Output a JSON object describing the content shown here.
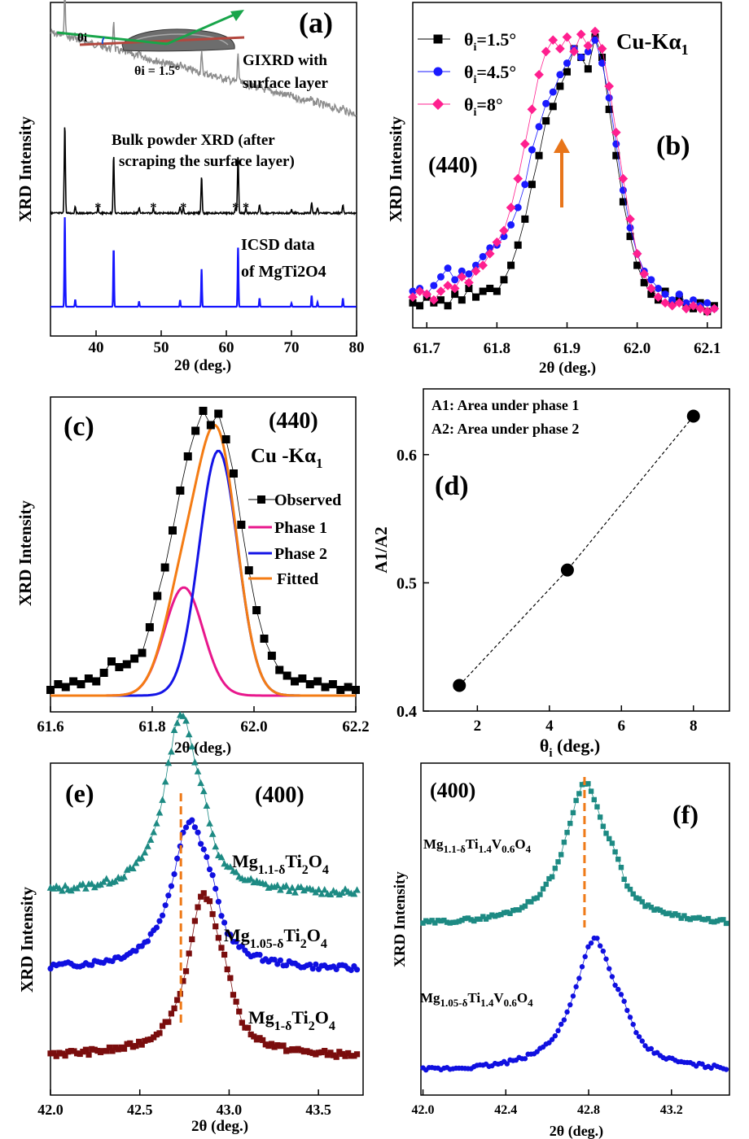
{
  "chart_data": [
    {
      "panel": "(a)",
      "type": "line",
      "xlabel": "2θ (deg.)",
      "ylabel": "XRD Intensity",
      "xlim": [
        33,
        80
      ],
      "xticks": [
        40,
        50,
        60,
        70,
        80
      ],
      "annotations": {
        "inset_angle_label": "θi",
        "inset_angle_value": "θi = 1.5°",
        "gixrd_label_1": "GIXRD with",
        "gixrd_label_2": "surface layer",
        "bulk_label_1": "Bulk powder XRD (after",
        "bulk_label_2": "scraping the surface layer)",
        "icsd_label_1": "ICSD data",
        "icsd_label_2": "of MgTi2O4",
        "impurity_marker": "*"
      },
      "impurity_positions": [
        40.3,
        48.8,
        53.4,
        61.4,
        63.0
      ],
      "reference_peaks": [
        {
          "x": 35.2,
          "rel": 1.0
        },
        {
          "x": 36.8,
          "rel": 0.08
        },
        {
          "x": 42.7,
          "rel": 0.65
        },
        {
          "x": 46.6,
          "rel": 0.06
        },
        {
          "x": 52.9,
          "rel": 0.07
        },
        {
          "x": 56.2,
          "rel": 0.42
        },
        {
          "x": 61.8,
          "rel": 0.66
        },
        {
          "x": 65.1,
          "rel": 0.09
        },
        {
          "x": 70.0,
          "rel": 0.04
        },
        {
          "x": 73.1,
          "rel": 0.12
        },
        {
          "x": 74.0,
          "rel": 0.05
        },
        {
          "x": 77.9,
          "rel": 0.09
        }
      ],
      "series": [
        {
          "name": "GIXRD with surface layer",
          "color": "#8c8c8c"
        },
        {
          "name": "Bulk powder XRD",
          "color": "#000000"
        },
        {
          "name": "ICSD data of MgTi2O4",
          "color": "#1515ff"
        }
      ]
    },
    {
      "panel": "(b)",
      "type": "line",
      "xlabel": "2θ (deg.)",
      "ylabel": "XRD Intensity",
      "xlim": [
        61.68,
        62.12
      ],
      "xticks": [
        61.7,
        61.8,
        61.9,
        62.0,
        62.1
      ],
      "title": "(440)",
      "radiation_main": "Cu-Kα",
      "radiation_sub": "1",
      "arrow_at": 61.885,
      "series": [
        {
          "name": "θi=1.5°",
          "greek": "θ",
          "sub": "i",
          "rest": "=1.5°",
          "color": "#000000",
          "marker": "square",
          "x": [
            61.68,
            61.69,
            61.7,
            61.71,
            61.72,
            61.73,
            61.74,
            61.75,
            61.76,
            61.77,
            61.78,
            61.79,
            61.8,
            61.81,
            61.82,
            61.83,
            61.84,
            61.85,
            61.86,
            61.87,
            61.88,
            61.89,
            61.9,
            61.91,
            61.92,
            61.93,
            61.94,
            61.95,
            61.96,
            61.97,
            61.98,
            61.99,
            62.0,
            62.01,
            62.02,
            62.03,
            62.04,
            62.05,
            62.06,
            62.07,
            62.08,
            62.09,
            62.1,
            62.11
          ],
          "y": [
            0.05,
            0.04,
            0.07,
            0.05,
            0.06,
            0.04,
            0.08,
            0.06,
            0.1,
            0.07,
            0.09,
            0.1,
            0.09,
            0.13,
            0.18,
            0.25,
            0.34,
            0.46,
            0.56,
            0.68,
            0.73,
            0.8,
            0.85,
            0.93,
            0.9,
            0.86,
            0.97,
            0.9,
            0.72,
            0.56,
            0.4,
            0.28,
            0.18,
            0.12,
            0.08,
            0.06,
            0.09,
            0.05,
            0.07,
            0.04,
            0.03,
            0.05,
            0.02,
            0.04
          ]
        },
        {
          "name": "θi=4.5°",
          "greek": "θ",
          "sub": "i",
          "rest": "=4.5°",
          "color": "#1a1aff",
          "marker": "circle",
          "x": [
            61.68,
            61.69,
            61.7,
            61.71,
            61.72,
            61.73,
            61.74,
            61.75,
            61.76,
            61.77,
            61.78,
            61.79,
            61.8,
            61.81,
            61.82,
            61.83,
            61.84,
            61.85,
            61.86,
            61.87,
            61.88,
            61.89,
            61.9,
            61.91,
            61.92,
            61.93,
            61.94,
            61.95,
            61.96,
            61.97,
            61.98,
            61.99,
            62.0,
            62.01,
            62.02,
            62.03,
            62.04,
            62.05,
            62.06,
            62.07,
            62.08,
            62.09,
            62.1,
            62.11
          ],
          "y": [
            0.09,
            0.1,
            0.08,
            0.11,
            0.14,
            0.17,
            0.13,
            0.16,
            0.15,
            0.18,
            0.21,
            0.24,
            0.25,
            0.28,
            0.32,
            0.38,
            0.46,
            0.58,
            0.66,
            0.74,
            0.78,
            0.84,
            0.88,
            0.93,
            0.9,
            0.92,
            0.96,
            0.88,
            0.76,
            0.6,
            0.44,
            0.31,
            0.22,
            0.16,
            0.13,
            0.1,
            0.08,
            0.06,
            0.08,
            0.05,
            0.06,
            0.04,
            0.05,
            0.03
          ]
        },
        {
          "name": "θi=8°",
          "greek": "θ",
          "sub": "i",
          "rest": "=8°",
          "color": "#ff1f8f",
          "marker": "diamond",
          "x": [
            61.68,
            61.69,
            61.7,
            61.71,
            61.72,
            61.73,
            61.74,
            61.75,
            61.76,
            61.77,
            61.78,
            61.79,
            61.8,
            61.81,
            61.82,
            61.83,
            61.84,
            61.85,
            61.86,
            61.87,
            61.88,
            61.89,
            61.9,
            61.91,
            61.92,
            61.93,
            61.94,
            61.95,
            61.96,
            61.97,
            61.98,
            61.99,
            62.0,
            62.01,
            62.02,
            62.03,
            62.04,
            62.05,
            62.06,
            62.07,
            62.08,
            62.09,
            62.1,
            62.11
          ],
          "y": [
            0.07,
            0.09,
            0.08,
            0.06,
            0.09,
            0.11,
            0.1,
            0.14,
            0.12,
            0.16,
            0.18,
            0.22,
            0.26,
            0.3,
            0.38,
            0.48,
            0.6,
            0.72,
            0.84,
            0.92,
            0.96,
            0.93,
            0.97,
            0.92,
            0.98,
            0.94,
            0.99,
            0.93,
            0.8,
            0.64,
            0.48,
            0.34,
            0.22,
            0.15,
            0.1,
            0.07,
            0.05,
            0.04,
            0.05,
            0.03,
            0.04,
            0.03,
            0.02,
            0.03
          ]
        }
      ]
    },
    {
      "panel": "(c)",
      "type": "line",
      "xlabel": "2θ (deg.)",
      "ylabel": "XRD Intensity",
      "xlim": [
        61.6,
        62.2
      ],
      "xticks": [
        61.6,
        61.8,
        62.0,
        62.2
      ],
      "title": "(440)",
      "radiation_main": "Cu -Kα",
      "radiation_sub": "1",
      "observed": {
        "name": "Observed",
        "color": "#000000",
        "x": [
          61.6,
          61.615,
          61.63,
          61.645,
          61.66,
          61.675,
          61.69,
          61.705,
          61.72,
          61.735,
          61.75,
          61.765,
          61.78,
          61.795,
          61.81,
          61.825,
          61.84,
          61.855,
          61.87,
          61.885,
          61.9,
          61.915,
          61.93,
          61.945,
          61.96,
          61.975,
          61.99,
          62.005,
          62.02,
          62.035,
          62.05,
          62.065,
          62.08,
          62.095,
          62.11,
          62.125,
          62.14,
          62.155,
          62.17,
          62.185,
          62.2
        ],
        "y": [
          0.02,
          0.04,
          0.03,
          0.05,
          0.04,
          0.06,
          0.05,
          0.08,
          0.12,
          0.1,
          0.11,
          0.13,
          0.15,
          0.24,
          0.35,
          0.45,
          0.58,
          0.72,
          0.84,
          0.93,
          1.0,
          0.95,
          0.99,
          0.9,
          0.78,
          0.6,
          0.44,
          0.3,
          0.2,
          0.14,
          0.09,
          0.07,
          0.05,
          0.06,
          0.04,
          0.05,
          0.03,
          0.04,
          0.02,
          0.03,
          0.02
        ]
      },
      "fits": [
        {
          "name": "Phase 1",
          "color": "#e8178c",
          "center": 61.862,
          "sigma": 0.038,
          "amplitude": 0.38
        },
        {
          "name": "Phase 2",
          "color": "#1414e6",
          "center": 61.93,
          "sigma": 0.038,
          "amplitude": 0.86
        },
        {
          "name": "Fitted",
          "color": "#f47c14"
        }
      ]
    },
    {
      "panel": "(d)",
      "type": "scatter",
      "xlabel_main": "θ",
      "xlabel_sub": "i",
      "xlabel_rest": " (deg.)",
      "ylabel": "A1/A2",
      "xlim": [
        0.5,
        9
      ],
      "ylim": [
        0.4,
        0.65
      ],
      "xticks": [
        2,
        4,
        6,
        8
      ],
      "yticks": [
        0.4,
        0.5,
        0.6
      ],
      "x": [
        1.5,
        4.5,
        8
      ],
      "y": [
        0.42,
        0.51,
        0.63
      ],
      "notes": [
        "A1: Area under phase 1",
        "A2: Area under phase 2"
      ]
    },
    {
      "panel": "(e)",
      "type": "line",
      "xlabel": "2θ (deg.)",
      "ylabel": "XRD Intensity",
      "xlim": [
        42.0,
        43.75
      ],
      "xticks": [
        42.0,
        42.5,
        43.0,
        43.5
      ],
      "title": "(400)",
      "reference_line": 42.73,
      "series": [
        {
          "name": "Mg1.1-δTi2O4",
          "base": "Mg",
          "sub": "1.1-δ",
          "mid": "Ti",
          "sub2": "2",
          "tail": "O",
          "sub3": "4",
          "color": "#1d8a83",
          "marker": "triangle",
          "center": 42.73,
          "width": 0.11,
          "amp": 0.85
        },
        {
          "name": "Mg1.05-δTi2O4",
          "base": "Mg",
          "sub": "1.05-δ",
          "mid": "Ti",
          "sub2": "2",
          "tail": "O",
          "sub3": "4",
          "color": "#1010e0",
          "marker": "circle",
          "center": 42.78,
          "width": 0.12,
          "amp": 0.8
        },
        {
          "name": "Mg1-δTi2O4",
          "base": "Mg",
          "sub": "1-δ",
          "mid": "Ti",
          "sub2": "2",
          "tail": "O",
          "sub3": "4",
          "color": "#7a0d0d",
          "marker": "square",
          "center": 42.86,
          "width": 0.11,
          "amp": 0.85
        }
      ]
    },
    {
      "panel": "(f)",
      "type": "line",
      "xlabel": "2θ (deg.)",
      "ylabel": "XRD Intensity",
      "xlim": [
        41.99,
        43.48
      ],
      "xticks": [
        42.0,
        42.4,
        42.8,
        43.2
      ],
      "title": "(400)",
      "reference_line": 42.78,
      "series": [
        {
          "name": "Mg1.1-δTi1.4V0.6O4",
          "base": "Mg",
          "sub": "1.1-δ",
          "mid": "Ti",
          "sub2": "1.4",
          "mid2": "V",
          "sub3": "0.6",
          "tail": "O",
          "sub4": "4",
          "color": "#1d8a83",
          "marker": "square",
          "center": 42.785,
          "width": 0.12,
          "amp": 0.95
        },
        {
          "name": "Mg1.05-δTi1.4V0.6O4",
          "base": "Mg",
          "sub": "1.05-δ",
          "mid": "Ti",
          "sub2": "1.4",
          "mid2": "V",
          "sub3": "0.6",
          "tail": "O",
          "sub4": "4",
          "color": "#1010e0",
          "marker": "circle",
          "center": 42.83,
          "width": 0.12,
          "amp": 0.9
        }
      ]
    }
  ]
}
